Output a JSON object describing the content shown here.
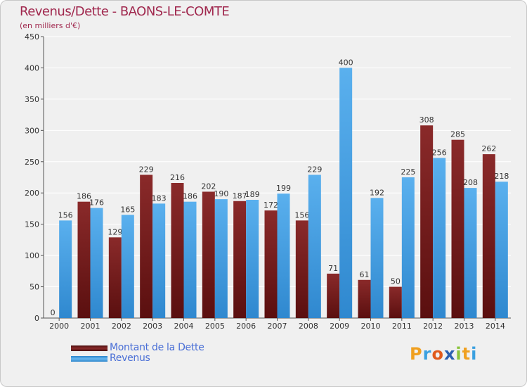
{
  "header": {
    "title": "Revenus/Dette - BAONS-LE-COMTE",
    "subtitle": "(en milliers d'€)"
  },
  "chart_data": {
    "type": "bar",
    "categories": [
      "2000",
      "2001",
      "2002",
      "2003",
      "2004",
      "2005",
      "2006",
      "2007",
      "2008",
      "2009",
      "2010",
      "2011",
      "2012",
      "2013",
      "2014"
    ],
    "series": [
      {
        "name": "Montant de la Dette",
        "color": "#7a1c1c",
        "values": [
          0,
          186,
          129,
          229,
          216,
          202,
          187,
          172,
          156,
          71,
          61,
          50,
          308,
          285,
          262
        ]
      },
      {
        "name": "Revenus",
        "color": "#4aa3e8",
        "values": [
          156,
          176,
          165,
          183,
          186,
          190,
          189,
          199,
          229,
          400,
          192,
          225,
          256,
          208,
          218
        ]
      }
    ],
    "ylim": [
      0,
      450
    ],
    "yticks": [
      0,
      50,
      100,
      150,
      200,
      250,
      300,
      350,
      400,
      450
    ],
    "grid": true
  },
  "legend": {
    "items": [
      {
        "label": "Montant de la Dette",
        "color": "#7a1c1c"
      },
      {
        "label": "Revenus",
        "color": "#4aa3e8"
      }
    ]
  },
  "logo": {
    "letters": [
      "P",
      "r",
      "o",
      "x",
      "i",
      "t",
      "i"
    ],
    "colors": [
      "#f0a020",
      "#3aa0e0",
      "#e05a1c",
      "#2a5fb0",
      "#8ac43c",
      "#f0a020",
      "#3aa0e0"
    ]
  }
}
